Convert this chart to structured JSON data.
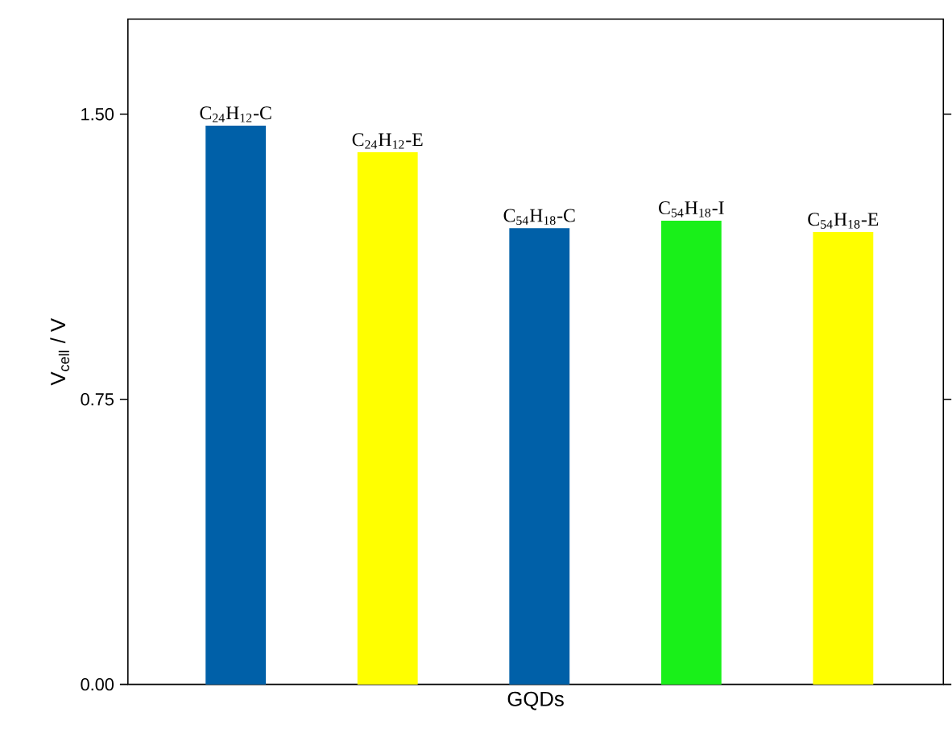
{
  "chart_data": {
    "type": "bar",
    "xlabel": "GQDs",
    "ylabel": "V$_{cell}$ / V",
    "categories": [
      "C$_{24}$H$_{12}$-C",
      "C$_{24}$H$_{12}$-E",
      "C$_{54}$H$_{18}$-C",
      "C$_{54}$H$_{18}$-I",
      "C$_{54}$H$_{18}$-E"
    ],
    "values": [
      1.47,
      1.4,
      1.2,
      1.22,
      1.19
    ],
    "colors": [
      "#0060a8",
      "#ffff00",
      "#0060a8",
      "#19f019",
      "#ffff00"
    ],
    "ylim": [
      0,
      1.75
    ],
    "yticks": [
      {
        "value": 0,
        "label": "0.00"
      },
      {
        "value": 0.75,
        "label": "0.75"
      },
      {
        "value": 1.5,
        "label": "1.50"
      }
    ],
    "grid": false
  }
}
